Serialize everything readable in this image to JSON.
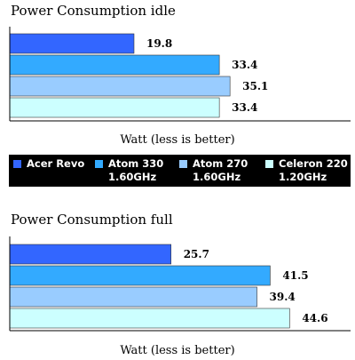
{
  "chart_data": [
    {
      "type": "bar",
      "orientation": "horizontal",
      "title": "Power Consumption idle",
      "xlabel": "Watt (less is better)",
      "categories": [
        "Acer Revo",
        "Atom 330 1.60GHz",
        "Atom 270 1.60GHz",
        "Celeron 220 1.20GHz"
      ],
      "values": [
        19.8,
        33.4,
        35.1,
        33.4
      ],
      "value_labels": [
        "19.8",
        "33.4",
        "35.1",
        "33.4"
      ],
      "xlim": [
        0,
        50
      ],
      "grid": false
    },
    {
      "type": "bar",
      "orientation": "horizontal",
      "title": "Power Consumption full",
      "xlabel": "Watt (less is better)",
      "categories": [
        "Acer Revo",
        "Atom 330 1.60GHz",
        "Atom 270 1.60GHz",
        "Celeron 220 1.20GHz"
      ],
      "values": [
        25.7,
        41.5,
        39.4,
        44.6
      ],
      "value_labels": [
        "25.7",
        "41.5",
        "39.4",
        "44.6"
      ],
      "xlim": [
        0,
        50
      ],
      "grid": false
    }
  ],
  "legend": {
    "items": [
      {
        "line1": "Acer Revo",
        "line2": "",
        "color": "#3366ff"
      },
      {
        "line1": "Atom 330",
        "line2": "1.60GHz",
        "color": "#33aaff"
      },
      {
        "line1": "Atom 270",
        "line2": "1.60GHz",
        "color": "#99ccff"
      },
      {
        "line1": "Celeron 220",
        "line2": "1.20GHz",
        "color": "#ccffff"
      }
    ]
  }
}
